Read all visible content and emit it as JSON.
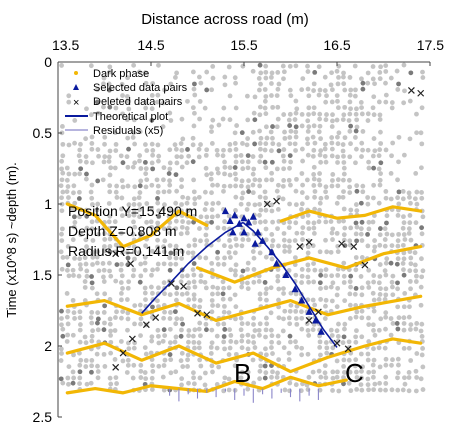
{
  "chart_data": {
    "type": "scatter",
    "xlabel": "Distance across road (m)",
    "ylabel": "Time (x10^8 s) ~depth (m).",
    "xlim": [
      13.5,
      17.5
    ],
    "ylim": [
      0,
      2.5
    ],
    "y_inverted": true,
    "x_axis_position": "top",
    "x_ticks": [
      "13.5",
      "14.5",
      "15.5",
      "16.5",
      "17.5"
    ],
    "y_ticks": [
      "0",
      "0.5",
      "1",
      "1.5",
      "2",
      "2.5"
    ],
    "legend": {
      "placement": "top-left",
      "entries": [
        {
          "label": "Dark phase",
          "symbol": "dot",
          "color": "#f2b705"
        },
        {
          "label": "Selected data pairs",
          "symbol": "triangle",
          "color": "#0a1a9e"
        },
        {
          "label": "Deleted data pairs",
          "symbol": "cross",
          "color": "#222222"
        },
        {
          "label": "Theoretical plot",
          "symbol": "line",
          "color": "#0a1a9e"
        },
        {
          "label": "Residuals (x5)",
          "symbol": "line",
          "color": "#8a86c9"
        }
      ]
    },
    "annotation": {
      "position_label": "Position  Y=15.490 m",
      "depth_label": "Depth     Z=0.808 m",
      "radius_label": "Radius   R=0.141 m"
    },
    "markers": [
      "B",
      "C"
    ],
    "theoretical_curve": {
      "apex": {
        "x": 15.49,
        "y": 1.13
      },
      "left_branch": [
        [
          15.49,
          1.13
        ],
        [
          15.3,
          1.2
        ],
        [
          15.1,
          1.3
        ],
        [
          14.9,
          1.42
        ],
        [
          14.7,
          1.56
        ],
        [
          14.55,
          1.66
        ],
        [
          14.4,
          1.77
        ]
      ],
      "right_branch": [
        [
          15.49,
          1.13
        ],
        [
          15.6,
          1.19
        ],
        [
          15.75,
          1.3
        ],
        [
          15.9,
          1.42
        ],
        [
          16.05,
          1.56
        ],
        [
          16.2,
          1.72
        ],
        [
          16.35,
          1.88
        ],
        [
          16.5,
          2.01
        ]
      ]
    },
    "selected_pairs": [
      [
        15.35,
        1.12
      ],
      [
        15.4,
        1.08
      ],
      [
        15.45,
        1.14
      ],
      [
        15.5,
        1.1
      ],
      [
        15.55,
        1.13
      ],
      [
        15.6,
        1.09
      ],
      [
        15.65,
        1.2
      ],
      [
        15.7,
        1.26
      ],
      [
        15.38,
        1.2
      ],
      [
        15.5,
        1.2
      ],
      [
        15.62,
        1.28
      ],
      [
        15.8,
        1.34
      ],
      [
        15.85,
        1.42
      ],
      [
        15.95,
        1.5
      ],
      [
        16.05,
        1.6
      ],
      [
        16.12,
        1.68
      ],
      [
        16.2,
        1.76
      ],
      [
        16.27,
        1.82
      ],
      [
        16.33,
        1.9
      ],
      [
        15.3,
        1.05
      ]
    ],
    "deleted_pairs": [
      [
        14.12,
        1.35
      ],
      [
        14.28,
        1.42
      ],
      [
        14.72,
        1.56
      ],
      [
        14.85,
        1.58
      ],
      [
        15.0,
        1.77
      ],
      [
        15.1,
        1.78
      ],
      [
        14.55,
        1.8
      ],
      [
        14.45,
        1.85
      ],
      [
        14.3,
        1.95
      ],
      [
        14.2,
        2.05
      ],
      [
        14.12,
        2.15
      ],
      [
        16.1,
        1.3
      ],
      [
        16.2,
        1.27
      ],
      [
        16.55,
        1.28
      ],
      [
        16.68,
        1.3
      ],
      [
        16.8,
        1.43
      ],
      [
        16.3,
        1.76
      ],
      [
        16.2,
        1.82
      ],
      [
        16.5,
        1.98
      ],
      [
        16.62,
        2.02
      ],
      [
        15.75,
        1.0
      ],
      [
        15.85,
        0.98
      ],
      [
        17.3,
        0.2
      ],
      [
        17.4,
        0.22
      ]
    ],
    "dark_phase_bands": [
      [
        [
          13.6,
          1.0
        ],
        [
          13.9,
          1.08
        ],
        [
          14.2,
          1.3
        ],
        [
          14.5,
          1.22
        ],
        [
          14.8,
          1.05
        ],
        [
          15.1,
          1.15
        ]
      ],
      [
        [
          15.0,
          1.45
        ],
        [
          15.4,
          1.55
        ],
        [
          15.8,
          1.45
        ],
        [
          16.2,
          1.38
        ],
        [
          16.6,
          1.45
        ],
        [
          17.0,
          1.35
        ],
        [
          17.4,
          1.3
        ]
      ],
      [
        [
          13.6,
          1.72
        ],
        [
          14.0,
          1.68
        ],
        [
          14.4,
          1.78
        ],
        [
          14.8,
          1.7
        ],
        [
          15.2,
          1.82
        ],
        [
          15.6,
          1.75
        ],
        [
          16.0,
          1.68
        ],
        [
          16.4,
          1.78
        ],
        [
          16.8,
          1.72
        ],
        [
          17.4,
          1.65
        ]
      ],
      [
        [
          13.6,
          2.05
        ],
        [
          14.0,
          1.98
        ],
        [
          14.4,
          2.1
        ],
        [
          14.8,
          2.0
        ],
        [
          15.2,
          2.12
        ],
        [
          15.6,
          2.05
        ],
        [
          16.0,
          2.18
        ],
        [
          16.4,
          2.08
        ],
        [
          16.8,
          2.0
        ],
        [
          17.1,
          1.95
        ],
        [
          17.4,
          1.98
        ]
      ],
      [
        [
          13.6,
          2.33
        ],
        [
          13.9,
          2.3
        ],
        [
          14.2,
          2.33
        ],
        [
          14.5,
          2.28
        ],
        [
          14.8,
          2.3
        ],
        [
          15.1,
          2.32
        ],
        [
          15.4,
          2.25
        ],
        [
          15.7,
          2.3
        ],
        [
          16.0,
          2.22
        ],
        [
          16.3,
          2.28
        ],
        [
          16.6,
          2.24
        ]
      ],
      [
        [
          15.9,
          1.12
        ],
        [
          16.2,
          1.05
        ],
        [
          16.5,
          1.1
        ],
        [
          16.8,
          1.08
        ],
        [
          17.1,
          1.02
        ],
        [
          17.4,
          1.05
        ]
      ]
    ],
    "residuals": {
      "baseline_y": 2.3,
      "x": [
        14.7,
        14.8,
        14.9,
        15.0,
        15.1,
        15.2,
        15.3,
        15.4,
        15.5,
        15.6,
        15.7,
        15.8,
        15.9,
        16.0,
        16.1,
        16.2,
        16.3
      ],
      "values": [
        0.05,
        0.09,
        0.04,
        0.07,
        0.03,
        0.06,
        0.02,
        0.08,
        0.05,
        0.1,
        0.04,
        0.07,
        0.03,
        0.06,
        0.09,
        0.05,
        0.08
      ]
    },
    "grid": false,
    "colors": {
      "background_scatter": "#c4c4c4",
      "dark_phase": "#f2b705",
      "selected": "#0a1a9e",
      "deleted": "#222222",
      "theory": "#0a1a9e",
      "residual": "#8a86c9"
    }
  }
}
